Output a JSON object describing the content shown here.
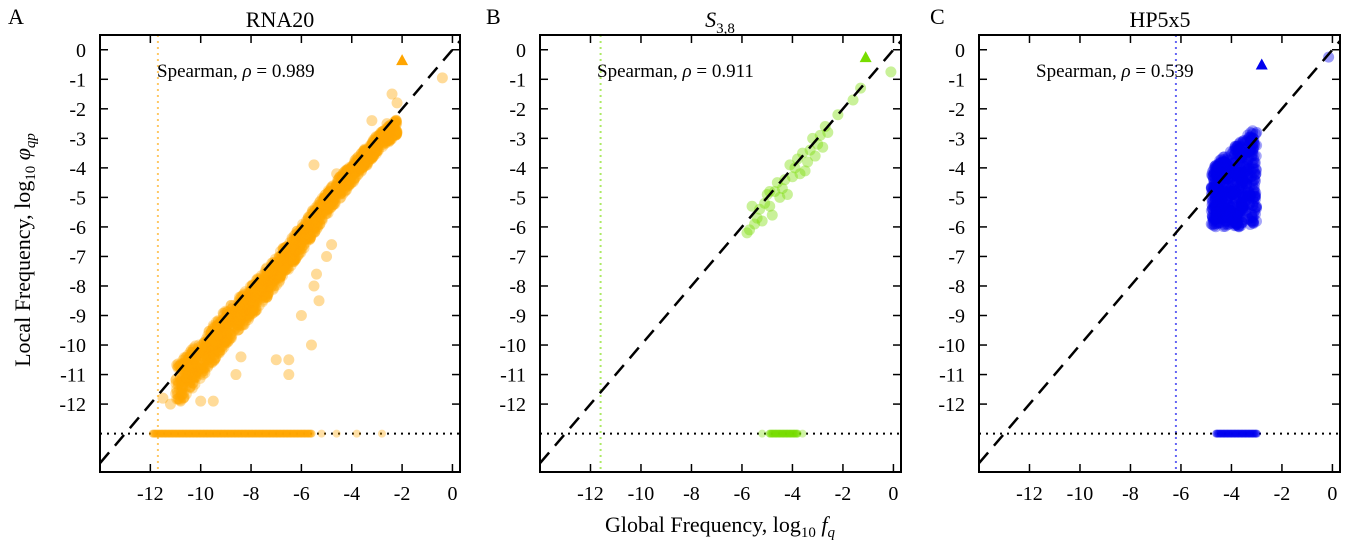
{
  "chart_data": [
    {
      "type": "scatter",
      "panel_label": "A",
      "title": "RNA20",
      "annotation": "Spearman, ρ = 0.989",
      "color": "#ffa500",
      "xlim": [
        -14,
        0.3
      ],
      "ylim": [
        -14.3,
        0.5
      ],
      "x_ticks": [
        -12,
        -10,
        -8,
        -6,
        -4,
        -2,
        0
      ],
      "y_ticks": [
        0,
        -1,
        -2,
        -3,
        -4,
        -5,
        -6,
        -7,
        -8,
        -9,
        -10,
        -11,
        -12
      ],
      "threshold_x": -11.7,
      "zero_line_y": -13.0,
      "series": [
        {
          "kind": "band",
          "points": [
            [
              -11.0,
              -11.4
            ],
            [
              -10.0,
              -10.5
            ],
            [
              -9.0,
              -9.4
            ],
            [
              -8.0,
              -8.5
            ],
            [
              -7.0,
              -7.5
            ],
            [
              -6.0,
              -6.4
            ],
            [
              -5.0,
              -5.2
            ],
            [
              -4.0,
              -4.2
            ],
            [
              -3.0,
              -3.2
            ],
            [
              -2.2,
              -2.6
            ]
          ],
          "half_width": 0.7
        },
        {
          "kind": "points",
          "points": [
            [
              -11.5,
              -11.8
            ],
            [
              -11.2,
              -12.0
            ],
            [
              -10.8,
              -11.9
            ],
            [
              -10.0,
              -11.9
            ],
            [
              -9.5,
              -11.9
            ],
            [
              -8.6,
              -11.0
            ],
            [
              -8.4,
              -10.4
            ],
            [
              -7.0,
              -10.5
            ],
            [
              -6.5,
              -11.0
            ],
            [
              -6.5,
              -10.5
            ],
            [
              -6.0,
              -9.0
            ],
            [
              -5.6,
              -10.0
            ],
            [
              -5.5,
              -8.0
            ],
            [
              -5.4,
              -7.6
            ],
            [
              -5.3,
              -8.5
            ],
            [
              -5.0,
              -7.0
            ],
            [
              -4.8,
              -6.6
            ],
            [
              -5.8,
              -5.8
            ],
            [
              -4.6,
              -4.2
            ],
            [
              -3.2,
              -2.4
            ],
            [
              -2.6,
              -2.5
            ],
            [
              -2.4,
              -1.5
            ],
            [
              -2.2,
              -1.8
            ],
            [
              -0.4,
              -0.95
            ],
            [
              -3.5,
              -3.9
            ],
            [
              -5.5,
              -3.9
            ]
          ]
        },
        {
          "kind": "zero_row",
          "x_range": [
            -11.9,
            -5.6
          ],
          "sparse": [
            -5.2,
            -4.6,
            -3.8,
            -2.8
          ]
        },
        {
          "kind": "marker",
          "shape": "triangle",
          "x": -2.0,
          "y": -0.35
        }
      ]
    },
    {
      "type": "scatter",
      "panel_label": "B",
      "title": "S3,8",
      "annotation": "Spearman, ρ = 0.911",
      "color": "#77dd00",
      "xlim": [
        -14,
        0.3
      ],
      "ylim": [
        -14.3,
        0.5
      ],
      "x_ticks": [
        -12,
        -10,
        -8,
        -6,
        -4,
        -2,
        0
      ],
      "y_ticks": [
        0,
        -1,
        -2,
        -3,
        -4,
        -5,
        -6,
        -7,
        -8,
        -9,
        -10,
        -11,
        -12
      ],
      "threshold_x": -11.6,
      "zero_line_y": -13.0,
      "series": [
        {
          "kind": "points",
          "points": [
            [
              -5.8,
              -6.2
            ],
            [
              -5.7,
              -6.1
            ],
            [
              -5.5,
              -5.9
            ],
            [
              -5.4,
              -5.7
            ],
            [
              -5.3,
              -5.4
            ],
            [
              -5.2,
              -5.8
            ],
            [
              -5.1,
              -5.2
            ],
            [
              -5.0,
              -4.9
            ],
            [
              -4.9,
              -5.3
            ],
            [
              -4.8,
              -5.6
            ],
            [
              -4.7,
              -4.8
            ],
            [
              -4.6,
              -4.5
            ],
            [
              -4.5,
              -5.0
            ],
            [
              -4.4,
              -4.7
            ],
            [
              -4.3,
              -4.4
            ],
            [
              -4.2,
              -4.9
            ],
            [
              -4.1,
              -3.9
            ],
            [
              -4.0,
              -4.3
            ],
            [
              -3.9,
              -4.0
            ],
            [
              -3.8,
              -3.7
            ],
            [
              -3.7,
              -4.2
            ],
            [
              -3.6,
              -3.5
            ],
            [
              -3.5,
              -4.1
            ],
            [
              -3.4,
              -3.8
            ],
            [
              -3.3,
              -3.4
            ],
            [
              -3.2,
              -3.0
            ],
            [
              -3.1,
              -3.6
            ],
            [
              -3.0,
              -3.2
            ],
            [
              -2.9,
              -2.9
            ],
            [
              -2.8,
              -3.3
            ],
            [
              -2.7,
              -2.6
            ],
            [
              -2.6,
              -2.8
            ],
            [
              -2.2,
              -2.2
            ],
            [
              -1.6,
              -1.7
            ],
            [
              -1.3,
              -1.3
            ],
            [
              -4.9,
              -4.8
            ],
            [
              -5.6,
              -5.3
            ],
            [
              -0.1,
              -0.75
            ]
          ]
        },
        {
          "kind": "zero_row",
          "x_range": [
            -4.9,
            -3.8
          ],
          "sparse": [
            -5.2,
            -3.6
          ]
        },
        {
          "kind": "marker",
          "shape": "triangle",
          "x": -1.1,
          "y": -0.25
        }
      ]
    },
    {
      "type": "scatter",
      "panel_label": "C",
      "title": "HP5x5",
      "annotation": "Spearman, ρ = 0.539",
      "color": "#0000ee",
      "xlim": [
        -14,
        0.3
      ],
      "ylim": [
        -14.3,
        0.5
      ],
      "x_ticks": [
        -12,
        -10,
        -8,
        -6,
        -4,
        -2,
        0
      ],
      "y_ticks": [
        0,
        -1,
        -2,
        -3,
        -4,
        -5,
        -6,
        -7,
        -8,
        -9,
        -10,
        -11,
        -12
      ],
      "threshold_x": -6.2,
      "zero_line_y": -13.0,
      "series": [
        {
          "kind": "blob",
          "x_range": [
            -4.8,
            -3.0
          ],
          "y_range": [
            -6.0,
            -2.6
          ]
        },
        {
          "kind": "points",
          "points": [
            [
              -0.15,
              -0.25
            ],
            [
              -4.8,
              -5.9
            ],
            [
              -3.0,
              -2.8
            ]
          ]
        },
        {
          "kind": "zero_row",
          "x_range": [
            -4.6,
            -3.0
          ],
          "sparse": []
        },
        {
          "kind": "marker",
          "shape": "triangle",
          "x": -2.8,
          "y": -0.5
        }
      ]
    }
  ],
  "axis_titles": {
    "x": "Global Frequency, log10 fq",
    "y": "Local Frequency, log10 φqp"
  }
}
